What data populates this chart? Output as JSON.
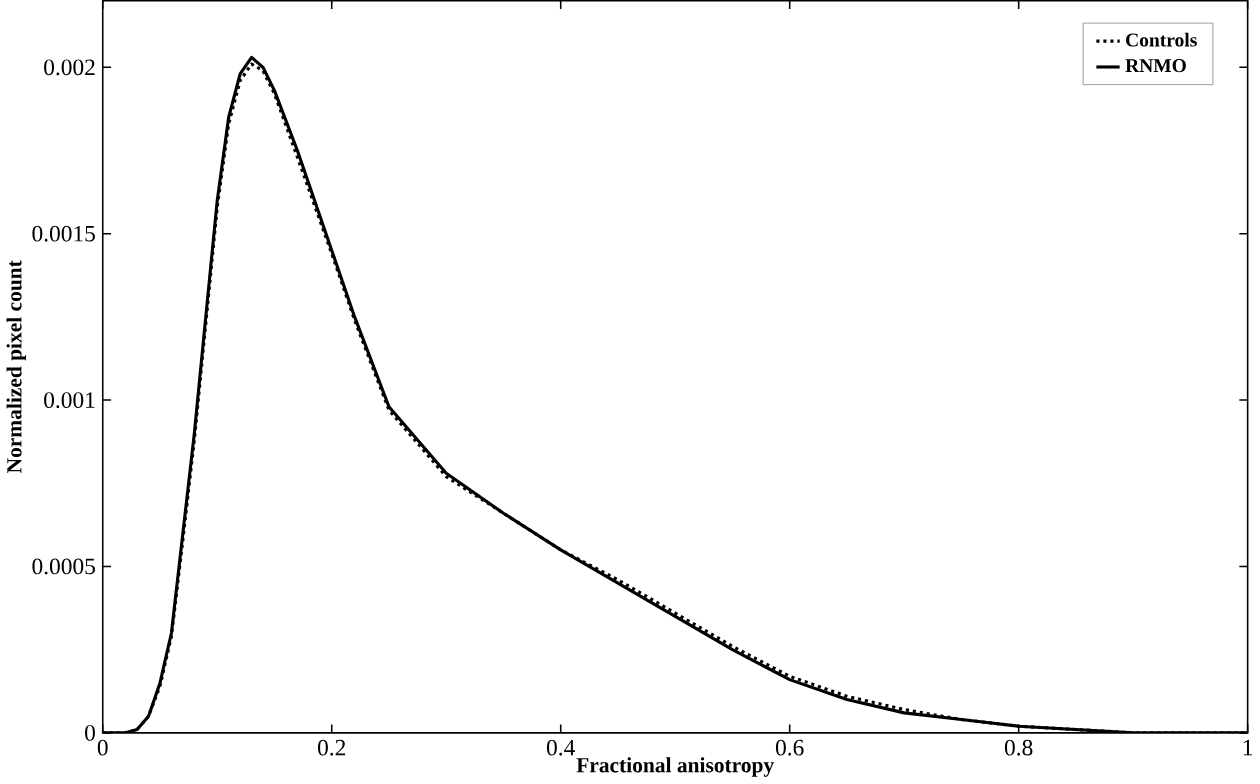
{
  "chart_data": {
    "type": "line",
    "xlabel": "Fractional anisotropy",
    "ylabel": "Normalized pixel count",
    "xlim": [
      0,
      1
    ],
    "ylim": [
      0,
      0.0022
    ],
    "xticks": [
      0,
      0.2,
      0.4,
      0.6,
      0.8,
      1
    ],
    "yticks": [
      0,
      0.0005,
      0.001,
      0.0015,
      0.002
    ],
    "legend": "top right",
    "grid": false,
    "marker": "none",
    "x": [
      0,
      0.02,
      0.03,
      0.04,
      0.05,
      0.06,
      0.07,
      0.08,
      0.09,
      0.1,
      0.11,
      0.12,
      0.13,
      0.14,
      0.15,
      0.17,
      0.2,
      0.22,
      0.25,
      0.3,
      0.35,
      0.4,
      0.45,
      0.5,
      0.55,
      0.6,
      0.65,
      0.7,
      0.75,
      0.8,
      0.85,
      0.9,
      1
    ],
    "series": [
      {
        "name": "Controls",
        "color": "#000000",
        "line_style": "dotted",
        "values": [
          0,
          0,
          1e-05,
          5e-05,
          0.00014,
          0.00029,
          0.00058,
          0.00088,
          0.00123,
          0.00158,
          0.00183,
          0.00196,
          0.00201,
          0.00199,
          0.00192,
          0.00173,
          0.00144,
          0.00124,
          0.00097,
          0.00077,
          0.00066,
          0.00055,
          0.00046,
          0.00036,
          0.00026,
          0.00017,
          0.00011,
          7e-05,
          4e-05,
          2e-05,
          1e-05,
          0,
          0
        ]
      },
      {
        "name": "RNMO",
        "color": "#000000",
        "line_style": "solid",
        "values": [
          0,
          0,
          1e-05,
          5e-05,
          0.00015,
          0.0003,
          0.0006,
          0.0009,
          0.00125,
          0.0016,
          0.00185,
          0.00198,
          0.00203,
          0.002,
          0.00193,
          0.00175,
          0.00145,
          0.00125,
          0.00098,
          0.00078,
          0.00066,
          0.00055,
          0.00045,
          0.00035,
          0.00025,
          0.00016,
          0.0001,
          6e-05,
          4e-05,
          2e-05,
          1e-05,
          0,
          0
        ]
      }
    ]
  }
}
